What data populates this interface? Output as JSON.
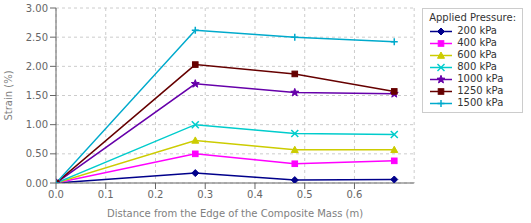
{
  "chart_data": {
    "type": "line",
    "title": "Applied Pressure:",
    "xlabel": "Distance from the Edge of the Composite Mass (m)",
    "ylabel": "Strain (%)",
    "x": [
      0.0,
      0.28,
      0.48,
      0.68
    ],
    "xlim": [
      0.0,
      0.72
    ],
    "ylim": [
      0.0,
      3.0
    ],
    "xticks": [
      {
        "value": 0.0,
        "label": "0.0"
      },
      0.1,
      0.2,
      0.3,
      0.4,
      0.5,
      0.6
    ],
    "yticks": [
      {
        "value": 0.0,
        "label": "0.00"
      },
      {
        "value": 0.5,
        "label": "0.50"
      },
      {
        "value": 1.0,
        "label": "1.00"
      },
      {
        "value": 1.5,
        "label": "1.50"
      },
      {
        "value": 2.0,
        "label": "2.00"
      },
      {
        "value": 2.5,
        "label": "2.50"
      },
      {
        "value": 3.0,
        "label": "3.00"
      }
    ],
    "grid": true,
    "legend": "right",
    "series": [
      {
        "name": "200 kPa",
        "color": "#00008B",
        "marker": "diamond",
        "values": [
          0.0,
          0.17,
          0.05,
          0.06
        ]
      },
      {
        "name": "400 kPa",
        "color": "#FF00FF",
        "marker": "square",
        "values": [
          0.0,
          0.5,
          0.33,
          0.38
        ]
      },
      {
        "name": "600 kPa",
        "color": "#CCCC00",
        "marker": "triangle",
        "values": [
          0.0,
          0.73,
          0.57,
          0.57
        ]
      },
      {
        "name": "800 kPa",
        "color": "#00CCCC",
        "marker": "x",
        "values": [
          0.0,
          1.0,
          0.85,
          0.83
        ]
      },
      {
        "name": "1000 kPa",
        "color": "#6600AA",
        "marker": "star",
        "values": [
          0.0,
          1.7,
          1.55,
          1.53
        ]
      },
      {
        "name": "1250 kPa",
        "color": "#660000",
        "marker": "square",
        "values": [
          0.0,
          2.03,
          1.87,
          1.57
        ]
      },
      {
        "name": "1500 kPa",
        "color": "#00AACC",
        "marker": "plus",
        "values": [
          0.0,
          2.62,
          2.5,
          2.42
        ]
      }
    ]
  }
}
